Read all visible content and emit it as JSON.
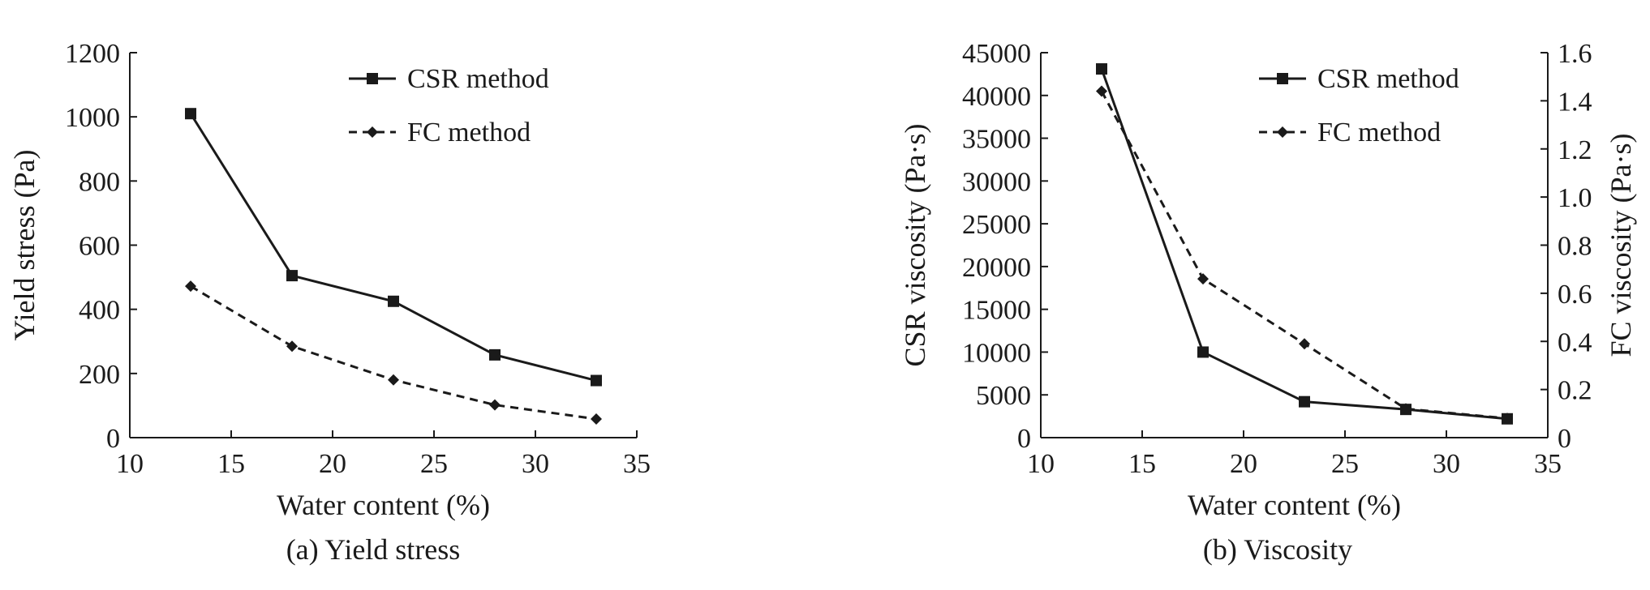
{
  "chart_data": [
    {
      "type": "line",
      "title": "(a) Yield stress",
      "xlabel": "Water content (%)",
      "ylabel": "Yield stress (Pa)",
      "xlim": [
        10,
        35
      ],
      "ylim": [
        0,
        1200
      ],
      "xticks": [
        10,
        15,
        20,
        25,
        30,
        35
      ],
      "yticks": [
        0,
        200,
        400,
        600,
        800,
        1000,
        1200
      ],
      "legend_position": "top-right",
      "grid": false,
      "x": [
        13,
        18,
        23,
        28,
        33
      ],
      "series": [
        {
          "name": "CSR method",
          "values": [
            1010,
            505,
            425,
            258,
            178
          ],
          "style": "solid",
          "marker": "square",
          "axis": "left"
        },
        {
          "name": "FC method",
          "values": [
            472,
            285,
            180,
            102,
            58
          ],
          "style": "dashed",
          "marker": "diamond",
          "axis": "left"
        }
      ]
    },
    {
      "type": "line",
      "title": "(b) Viscosity",
      "xlabel": "Water content (%)",
      "ylabel": "CSR viscosity  (Pa·s)",
      "y2label": "FC viscosity  (Pa·s)",
      "xlim": [
        10,
        35
      ],
      "ylim": [
        0,
        45000
      ],
      "y2lim": [
        0,
        1.6
      ],
      "xticks": [
        10,
        15,
        20,
        25,
        30,
        35
      ],
      "yticks": [
        0,
        5000,
        10000,
        15000,
        20000,
        25000,
        30000,
        35000,
        40000,
        45000
      ],
      "y2ticks": [
        0,
        0.2,
        0.4,
        0.6,
        0.8,
        1.0,
        1.2,
        1.4,
        1.6
      ],
      "y2ticklabels": [
        "0",
        "0.2",
        "0.4",
        "0.6",
        "0.8",
        "1.0",
        "1.2",
        "1.4",
        "1.6"
      ],
      "legend_position": "top-right",
      "grid": false,
      "x": [
        13,
        18,
        23,
        28,
        33
      ],
      "series": [
        {
          "name": "CSR method",
          "values": [
            43100,
            10000,
            4200,
            3300,
            2200
          ],
          "style": "solid",
          "marker": "square",
          "axis": "left"
        },
        {
          "name": "FC method",
          "values": [
            1.44,
            0.66,
            0.39,
            0.12,
            0.08
          ],
          "style": "dashed",
          "marker": "diamond",
          "axis": "right"
        }
      ]
    }
  ]
}
